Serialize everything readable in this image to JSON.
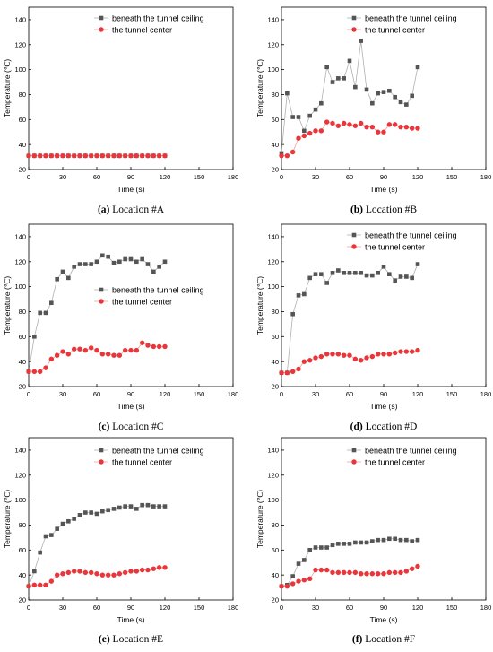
{
  "charts": [
    {
      "caption": {
        "letter": "(a)",
        "text": " Location #A"
      },
      "chart_data": {
        "type": "line",
        "xlabel": "Time (s)",
        "ylabel": "Temperature (℃)",
        "xlim": [
          0,
          180
        ],
        "ylim": [
          20,
          150
        ],
        "xticks": [
          0,
          30,
          60,
          90,
          120,
          150,
          180
        ],
        "yticks": [
          20,
          40,
          60,
          80,
          100,
          120,
          140
        ],
        "legend_position": "top-right",
        "series": [
          {
            "name": "beneath the tunnel ceiling",
            "color": "#555555",
            "marker": "square",
            "x": [
              0,
              5,
              10,
              15,
              20,
              25,
              30,
              35,
              40,
              45,
              50,
              55,
              60,
              65,
              70,
              75,
              80,
              85,
              90,
              95,
              100,
              105,
              110,
              115,
              120
            ],
            "y": [
              31,
              31,
              31,
              31,
              31,
              31,
              31,
              31,
              31,
              31,
              31,
              31,
              31,
              31,
              31,
              31,
              31,
              31,
              31,
              31,
              31,
              31,
              31,
              31,
              31
            ]
          },
          {
            "name": "the tunnel center",
            "color": "#e8363a",
            "marker": "circle",
            "x": [
              0,
              5,
              10,
              15,
              20,
              25,
              30,
              35,
              40,
              45,
              50,
              55,
              60,
              65,
              70,
              75,
              80,
              85,
              90,
              95,
              100,
              105,
              110,
              115,
              120
            ],
            "y": [
              31,
              31,
              31,
              31,
              31,
              31,
              31,
              31,
              31,
              31,
              31,
              31,
              31,
              31,
              31,
              31,
              31,
              31,
              31,
              31,
              31,
              31,
              31,
              31,
              31
            ]
          }
        ]
      }
    },
    {
      "caption": {
        "letter": "(b)",
        "text": " Location #B"
      },
      "chart_data": {
        "type": "line",
        "xlabel": "Time (s)",
        "ylabel": "Temperature (℃)",
        "xlim": [
          0,
          180
        ],
        "ylim": [
          20,
          150
        ],
        "xticks": [
          0,
          30,
          60,
          90,
          120,
          150,
          180
        ],
        "yticks": [
          20,
          40,
          60,
          80,
          100,
          120,
          140
        ],
        "legend_position": "top-right",
        "series": [
          {
            "name": "beneath the tunnel ceiling",
            "color": "#555555",
            "marker": "square",
            "x": [
              0,
              5,
              10,
              15,
              20,
              25,
              30,
              35,
              40,
              45,
              50,
              55,
              60,
              65,
              70,
              75,
              80,
              85,
              90,
              95,
              100,
              105,
              110,
              115,
              120
            ],
            "y": [
              33,
              81,
              62,
              62,
              51,
              63,
              68,
              73,
              102,
              90,
              93,
              93,
              107,
              86,
              123,
              84,
              73,
              81,
              82,
              83,
              78,
              74,
              72,
              79,
              102
            ]
          },
          {
            "name": "the tunnel center",
            "color": "#e8363a",
            "marker": "circle",
            "x": [
              0,
              5,
              10,
              15,
              20,
              25,
              30,
              35,
              40,
              45,
              50,
              55,
              60,
              65,
              70,
              75,
              80,
              85,
              90,
              95,
              100,
              105,
              110,
              115,
              120
            ],
            "y": [
              31,
              31,
              34,
              45,
              47,
              49,
              51,
              51,
              58,
              57,
              55,
              57,
              56,
              55,
              57,
              54,
              54,
              50,
              50,
              56,
              56,
              54,
              54,
              53,
              53
            ]
          }
        ]
      }
    },
    {
      "caption": {
        "letter": "(c)",
        "text": " Location #C"
      },
      "chart_data": {
        "type": "line",
        "xlabel": "Time (s)",
        "ylabel": "Temperature (℃)",
        "xlim": [
          0,
          180
        ],
        "ylim": [
          20,
          150
        ],
        "xticks": [
          0,
          30,
          60,
          90,
          120,
          150,
          180
        ],
        "yticks": [
          20,
          40,
          60,
          80,
          100,
          120,
          140
        ],
        "legend_position": "center-right",
        "series": [
          {
            "name": "beneath the tunnel ceiling",
            "color": "#555555",
            "marker": "square",
            "x": [
              0,
              5,
              10,
              15,
              20,
              25,
              30,
              35,
              40,
              45,
              50,
              55,
              60,
              65,
              70,
              75,
              80,
              85,
              90,
              95,
              100,
              105,
              110,
              115,
              120
            ],
            "y": [
              32,
              60,
              79,
              79,
              87,
              106,
              112,
              107,
              116,
              118,
              118,
              118,
              120,
              125,
              124,
              119,
              120,
              122,
              122,
              120,
              122,
              118,
              112,
              116,
              120
            ]
          },
          {
            "name": "the tunnel center",
            "color": "#e8363a",
            "marker": "circle",
            "x": [
              0,
              5,
              10,
              15,
              20,
              25,
              30,
              35,
              40,
              45,
              50,
              55,
              60,
              65,
              70,
              75,
              80,
              85,
              90,
              95,
              100,
              105,
              110,
              115,
              120
            ],
            "y": [
              32,
              32,
              32,
              35,
              42,
              45,
              48,
              46,
              50,
              50,
              49,
              51,
              49,
              46,
              46,
              45,
              45,
              49,
              49,
              49,
              55,
              53,
              52,
              52,
              52
            ]
          }
        ]
      }
    },
    {
      "caption": {
        "letter": "(d)",
        "text": " Location #D"
      },
      "chart_data": {
        "type": "line",
        "xlabel": "Time (s)",
        "ylabel": "Temperature (℃)",
        "xlim": [
          0,
          180
        ],
        "ylim": [
          20,
          150
        ],
        "xticks": [
          0,
          30,
          60,
          90,
          120,
          150,
          180
        ],
        "yticks": [
          20,
          40,
          60,
          80,
          100,
          120,
          140
        ],
        "legend_position": "top-right",
        "series": [
          {
            "name": "beneath the tunnel ceiling",
            "color": "#555555",
            "marker": "square",
            "x": [
              0,
              5,
              10,
              15,
              20,
              25,
              30,
              35,
              40,
              45,
              50,
              55,
              60,
              65,
              70,
              75,
              80,
              85,
              90,
              95,
              100,
              105,
              110,
              115,
              120
            ],
            "y": [
              31,
              31,
              78,
              93,
              94,
              107,
              110,
              110,
              103,
              111,
              113,
              111,
              111,
              111,
              111,
              109,
              109,
              111,
              116,
              110,
              105,
              108,
              108,
              107,
              118
            ]
          },
          {
            "name": "the tunnel center",
            "color": "#e8363a",
            "marker": "circle",
            "x": [
              0,
              5,
              10,
              15,
              20,
              25,
              30,
              35,
              40,
              45,
              50,
              55,
              60,
              65,
              70,
              75,
              80,
              85,
              90,
              95,
              100,
              105,
              110,
              115,
              120
            ],
            "y": [
              31,
              31,
              32,
              34,
              40,
              41,
              43,
              44,
              46,
              46,
              46,
              45,
              45,
              42,
              41,
              43,
              44,
              46,
              46,
              46,
              47,
              48,
              48,
              48,
              49
            ]
          }
        ]
      }
    },
    {
      "caption": {
        "letter": "(e)",
        "text": " Location #E"
      },
      "chart_data": {
        "type": "line",
        "xlabel": "Time (s)",
        "ylabel": "Temperature (℃)",
        "xlim": [
          0,
          180
        ],
        "ylim": [
          20,
          150
        ],
        "xticks": [
          0,
          30,
          60,
          90,
          120,
          150,
          180
        ],
        "yticks": [
          20,
          40,
          60,
          80,
          100,
          120,
          140
        ],
        "legend_position": "top-right",
        "series": [
          {
            "name": "beneath the tunnel ceiling",
            "color": "#555555",
            "marker": "square",
            "x": [
              0,
              5,
              10,
              15,
              20,
              25,
              30,
              35,
              40,
              45,
              50,
              55,
              60,
              65,
              70,
              75,
              80,
              85,
              90,
              95,
              100,
              105,
              110,
              115,
              120
            ],
            "y": [
              31,
              43,
              58,
              71,
              72,
              77,
              81,
              83,
              85,
              88,
              90,
              90,
              89,
              91,
              92,
              93,
              94,
              95,
              95,
              93,
              96,
              96,
              95,
              95,
              95
            ]
          },
          {
            "name": "the tunnel center",
            "color": "#e8363a",
            "marker": "circle",
            "x": [
              0,
              5,
              10,
              15,
              20,
              25,
              30,
              35,
              40,
              45,
              50,
              55,
              60,
              65,
              70,
              75,
              80,
              85,
              90,
              95,
              100,
              105,
              110,
              115,
              120
            ],
            "y": [
              31,
              32,
              32,
              32,
              35,
              40,
              41,
              42,
              43,
              43,
              42,
              42,
              41,
              40,
              40,
              40,
              41,
              42,
              43,
              43,
              44,
              44,
              45,
              46,
              46
            ]
          }
        ]
      }
    },
    {
      "caption": {
        "letter": "(f)",
        "text": " Location #F"
      },
      "chart_data": {
        "type": "line",
        "xlabel": "Time (s)",
        "ylabel": "Temperature (℃)",
        "xlim": [
          0,
          180
        ],
        "ylim": [
          20,
          150
        ],
        "xticks": [
          0,
          30,
          60,
          90,
          120,
          150,
          180
        ],
        "yticks": [
          20,
          40,
          60,
          80,
          100,
          120,
          140
        ],
        "legend_position": "top-right",
        "series": [
          {
            "name": "beneath the tunnel ceiling",
            "color": "#555555",
            "marker": "square",
            "x": [
              0,
              5,
              10,
              15,
              20,
              25,
              30,
              35,
              40,
              45,
              50,
              55,
              60,
              65,
              70,
              75,
              80,
              85,
              90,
              95,
              100,
              105,
              110,
              115,
              120
            ],
            "y": [
              31,
              32,
              39,
              49,
              52,
              60,
              62,
              62,
              62,
              64,
              65,
              65,
              65,
              66,
              66,
              66,
              67,
              68,
              68,
              69,
              69,
              68,
              68,
              67,
              68
            ]
          },
          {
            "name": "the tunnel center",
            "color": "#e8363a",
            "marker": "circle",
            "x": [
              0,
              5,
              10,
              15,
              20,
              25,
              30,
              35,
              40,
              45,
              50,
              55,
              60,
              65,
              70,
              75,
              80,
              85,
              90,
              95,
              100,
              105,
              110,
              115,
              120
            ],
            "y": [
              31,
              31,
              33,
              35,
              36,
              37,
              44,
              44,
              44,
              42,
              42,
              42,
              42,
              42,
              41,
              41,
              41,
              41,
              41,
              42,
              42,
              42,
              43,
              45,
              47
            ]
          }
        ]
      }
    }
  ]
}
